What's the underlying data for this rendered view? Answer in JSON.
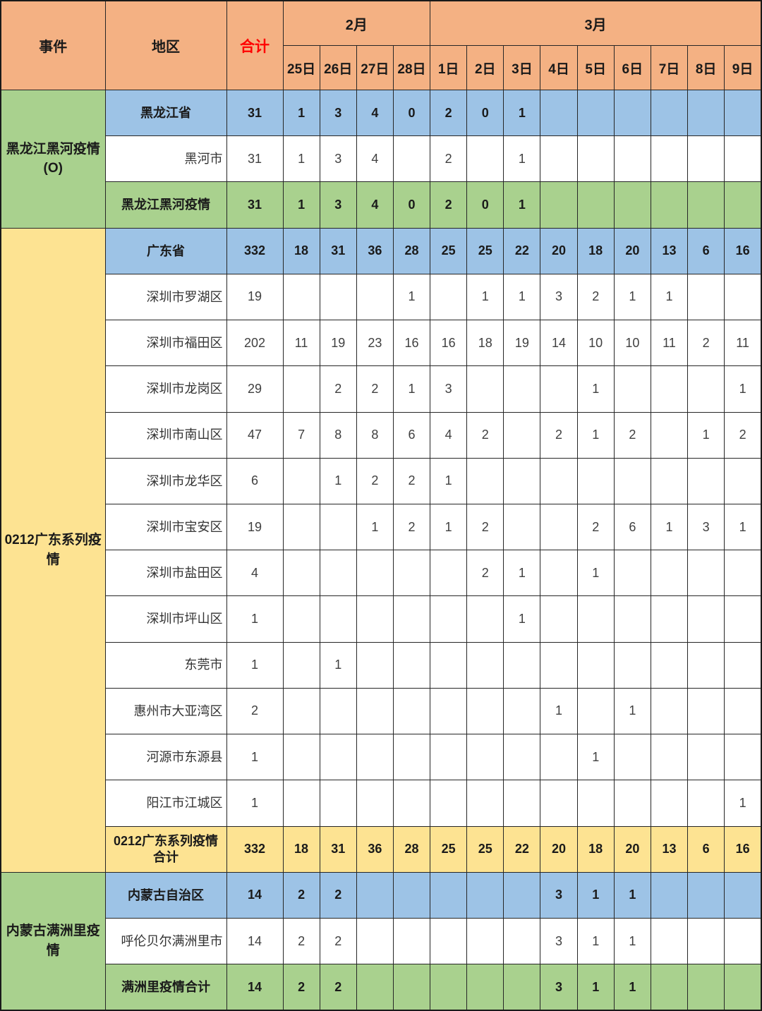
{
  "header": {
    "event_label": "事件",
    "region_label": "地区",
    "total_label": "合计",
    "month_feb": "2月",
    "month_mar": "3月",
    "feb_day_count": 4,
    "mar_day_count": 9,
    "days": [
      "25日",
      "26日",
      "27日",
      "28日",
      "1日",
      "2日",
      "3日",
      "4日",
      "5日",
      "6日",
      "7日",
      "8日",
      "9日"
    ]
  },
  "colors": {
    "header_orange": "#F4B183",
    "province_blue": "#9DC3E6",
    "section_green": "#A9D18E",
    "section_yellow": "#FDE392",
    "total_red": "#FF0000"
  },
  "sections": [
    {
      "event": "黑龙江黑河疫情(O)",
      "style": "sec-green",
      "rows": [
        {
          "region": "黑龙江省",
          "style": "blue",
          "total": "31",
          "values": [
            "1",
            "3",
            "4",
            "0",
            "2",
            "0",
            "1",
            "",
            "",
            "",
            "",
            "",
            ""
          ]
        },
        {
          "region": "黑河市",
          "style": "white",
          "total": "31",
          "values": [
            "1",
            "3",
            "4",
            "",
            "2",
            "",
            "1",
            "",
            "",
            "",
            "",
            "",
            ""
          ]
        },
        {
          "region": "黑龙江黑河疫情",
          "style": "green",
          "total": "31",
          "values": [
            "1",
            "3",
            "4",
            "0",
            "2",
            "0",
            "1",
            "",
            "",
            "",
            "",
            "",
            ""
          ]
        }
      ]
    },
    {
      "event": "0212广东系列疫情",
      "style": "sec-yellow",
      "rows": [
        {
          "region": "广东省",
          "style": "blue",
          "total": "332",
          "values": [
            "18",
            "31",
            "36",
            "28",
            "25",
            "25",
            "22",
            "20",
            "18",
            "20",
            "13",
            "6",
            "16"
          ]
        },
        {
          "region": "深圳市罗湖区",
          "style": "white",
          "total": "19",
          "values": [
            "",
            "",
            "",
            "1",
            "",
            "1",
            "1",
            "3",
            "2",
            "1",
            "1",
            "",
            ""
          ]
        },
        {
          "region": "深圳市福田区",
          "style": "white",
          "total": "202",
          "values": [
            "11",
            "19",
            "23",
            "16",
            "16",
            "18",
            "19",
            "14",
            "10",
            "10",
            "11",
            "2",
            "11"
          ]
        },
        {
          "region": "深圳市龙岗区",
          "style": "white",
          "total": "29",
          "values": [
            "",
            "2",
            "2",
            "1",
            "3",
            "",
            "",
            "",
            "1",
            "",
            "",
            "",
            "1"
          ]
        },
        {
          "region": "深圳市南山区",
          "style": "white",
          "total": "47",
          "values": [
            "7",
            "8",
            "8",
            "6",
            "4",
            "2",
            "",
            "2",
            "1",
            "2",
            "",
            "1",
            "2"
          ]
        },
        {
          "region": "深圳市龙华区",
          "style": "white",
          "total": "6",
          "values": [
            "",
            "1",
            "2",
            "2",
            "1",
            "",
            "",
            "",
            "",
            "",
            "",
            "",
            ""
          ]
        },
        {
          "region": "深圳市宝安区",
          "style": "white",
          "total": "19",
          "values": [
            "",
            "",
            "1",
            "2",
            "1",
            "2",
            "",
            "",
            "2",
            "6",
            "1",
            "3",
            "1"
          ]
        },
        {
          "region": "深圳市盐田区",
          "style": "white",
          "total": "4",
          "values": [
            "",
            "",
            "",
            "",
            "",
            "2",
            "1",
            "",
            "1",
            "",
            "",
            "",
            ""
          ]
        },
        {
          "region": "深圳市坪山区",
          "style": "white",
          "total": "1",
          "values": [
            "",
            "",
            "",
            "",
            "",
            "",
            "1",
            "",
            "",
            "",
            "",
            "",
            ""
          ]
        },
        {
          "region": "东莞市",
          "style": "white",
          "total": "1",
          "values": [
            "",
            "1",
            "",
            "",
            "",
            "",
            "",
            "",
            "",
            "",
            "",
            "",
            ""
          ]
        },
        {
          "region": "惠州市大亚湾区",
          "style": "white",
          "total": "2",
          "values": [
            "",
            "",
            "",
            "",
            "",
            "",
            "",
            "1",
            "",
            "1",
            "",
            "",
            ""
          ]
        },
        {
          "region": "河源市东源县",
          "style": "white",
          "total": "1",
          "values": [
            "",
            "",
            "",
            "",
            "",
            "",
            "",
            "",
            "1",
            "",
            "",
            "",
            ""
          ]
        },
        {
          "region": "阳江市江城区",
          "style": "white",
          "total": "1",
          "values": [
            "",
            "",
            "",
            "",
            "",
            "",
            "",
            "",
            "",
            "",
            "",
            "",
            "1"
          ]
        },
        {
          "region": "0212广东系列疫情合计",
          "style": "yellow",
          "total": "332",
          "values": [
            "18",
            "31",
            "36",
            "28",
            "25",
            "25",
            "22",
            "20",
            "18",
            "20",
            "13",
            "6",
            "16"
          ]
        }
      ]
    },
    {
      "event": "内蒙古满洲里疫情",
      "style": "sec-green",
      "rows": [
        {
          "region": "内蒙古自治区",
          "style": "blue",
          "total": "14",
          "values": [
            "2",
            "2",
            "",
            "",
            "",
            "",
            "",
            "3",
            "1",
            "1",
            "",
            "",
            ""
          ]
        },
        {
          "region": "呼伦贝尔满洲里市",
          "style": "white",
          "total": "14",
          "values": [
            "2",
            "2",
            "",
            "",
            "",
            "",
            "",
            "3",
            "1",
            "1",
            "",
            "",
            ""
          ]
        },
        {
          "region": "满洲里疫情合计",
          "style": "green",
          "total": "14",
          "values": [
            "2",
            "2",
            "",
            "",
            "",
            "",
            "",
            "3",
            "1",
            "1",
            "",
            "",
            ""
          ]
        }
      ]
    }
  ]
}
